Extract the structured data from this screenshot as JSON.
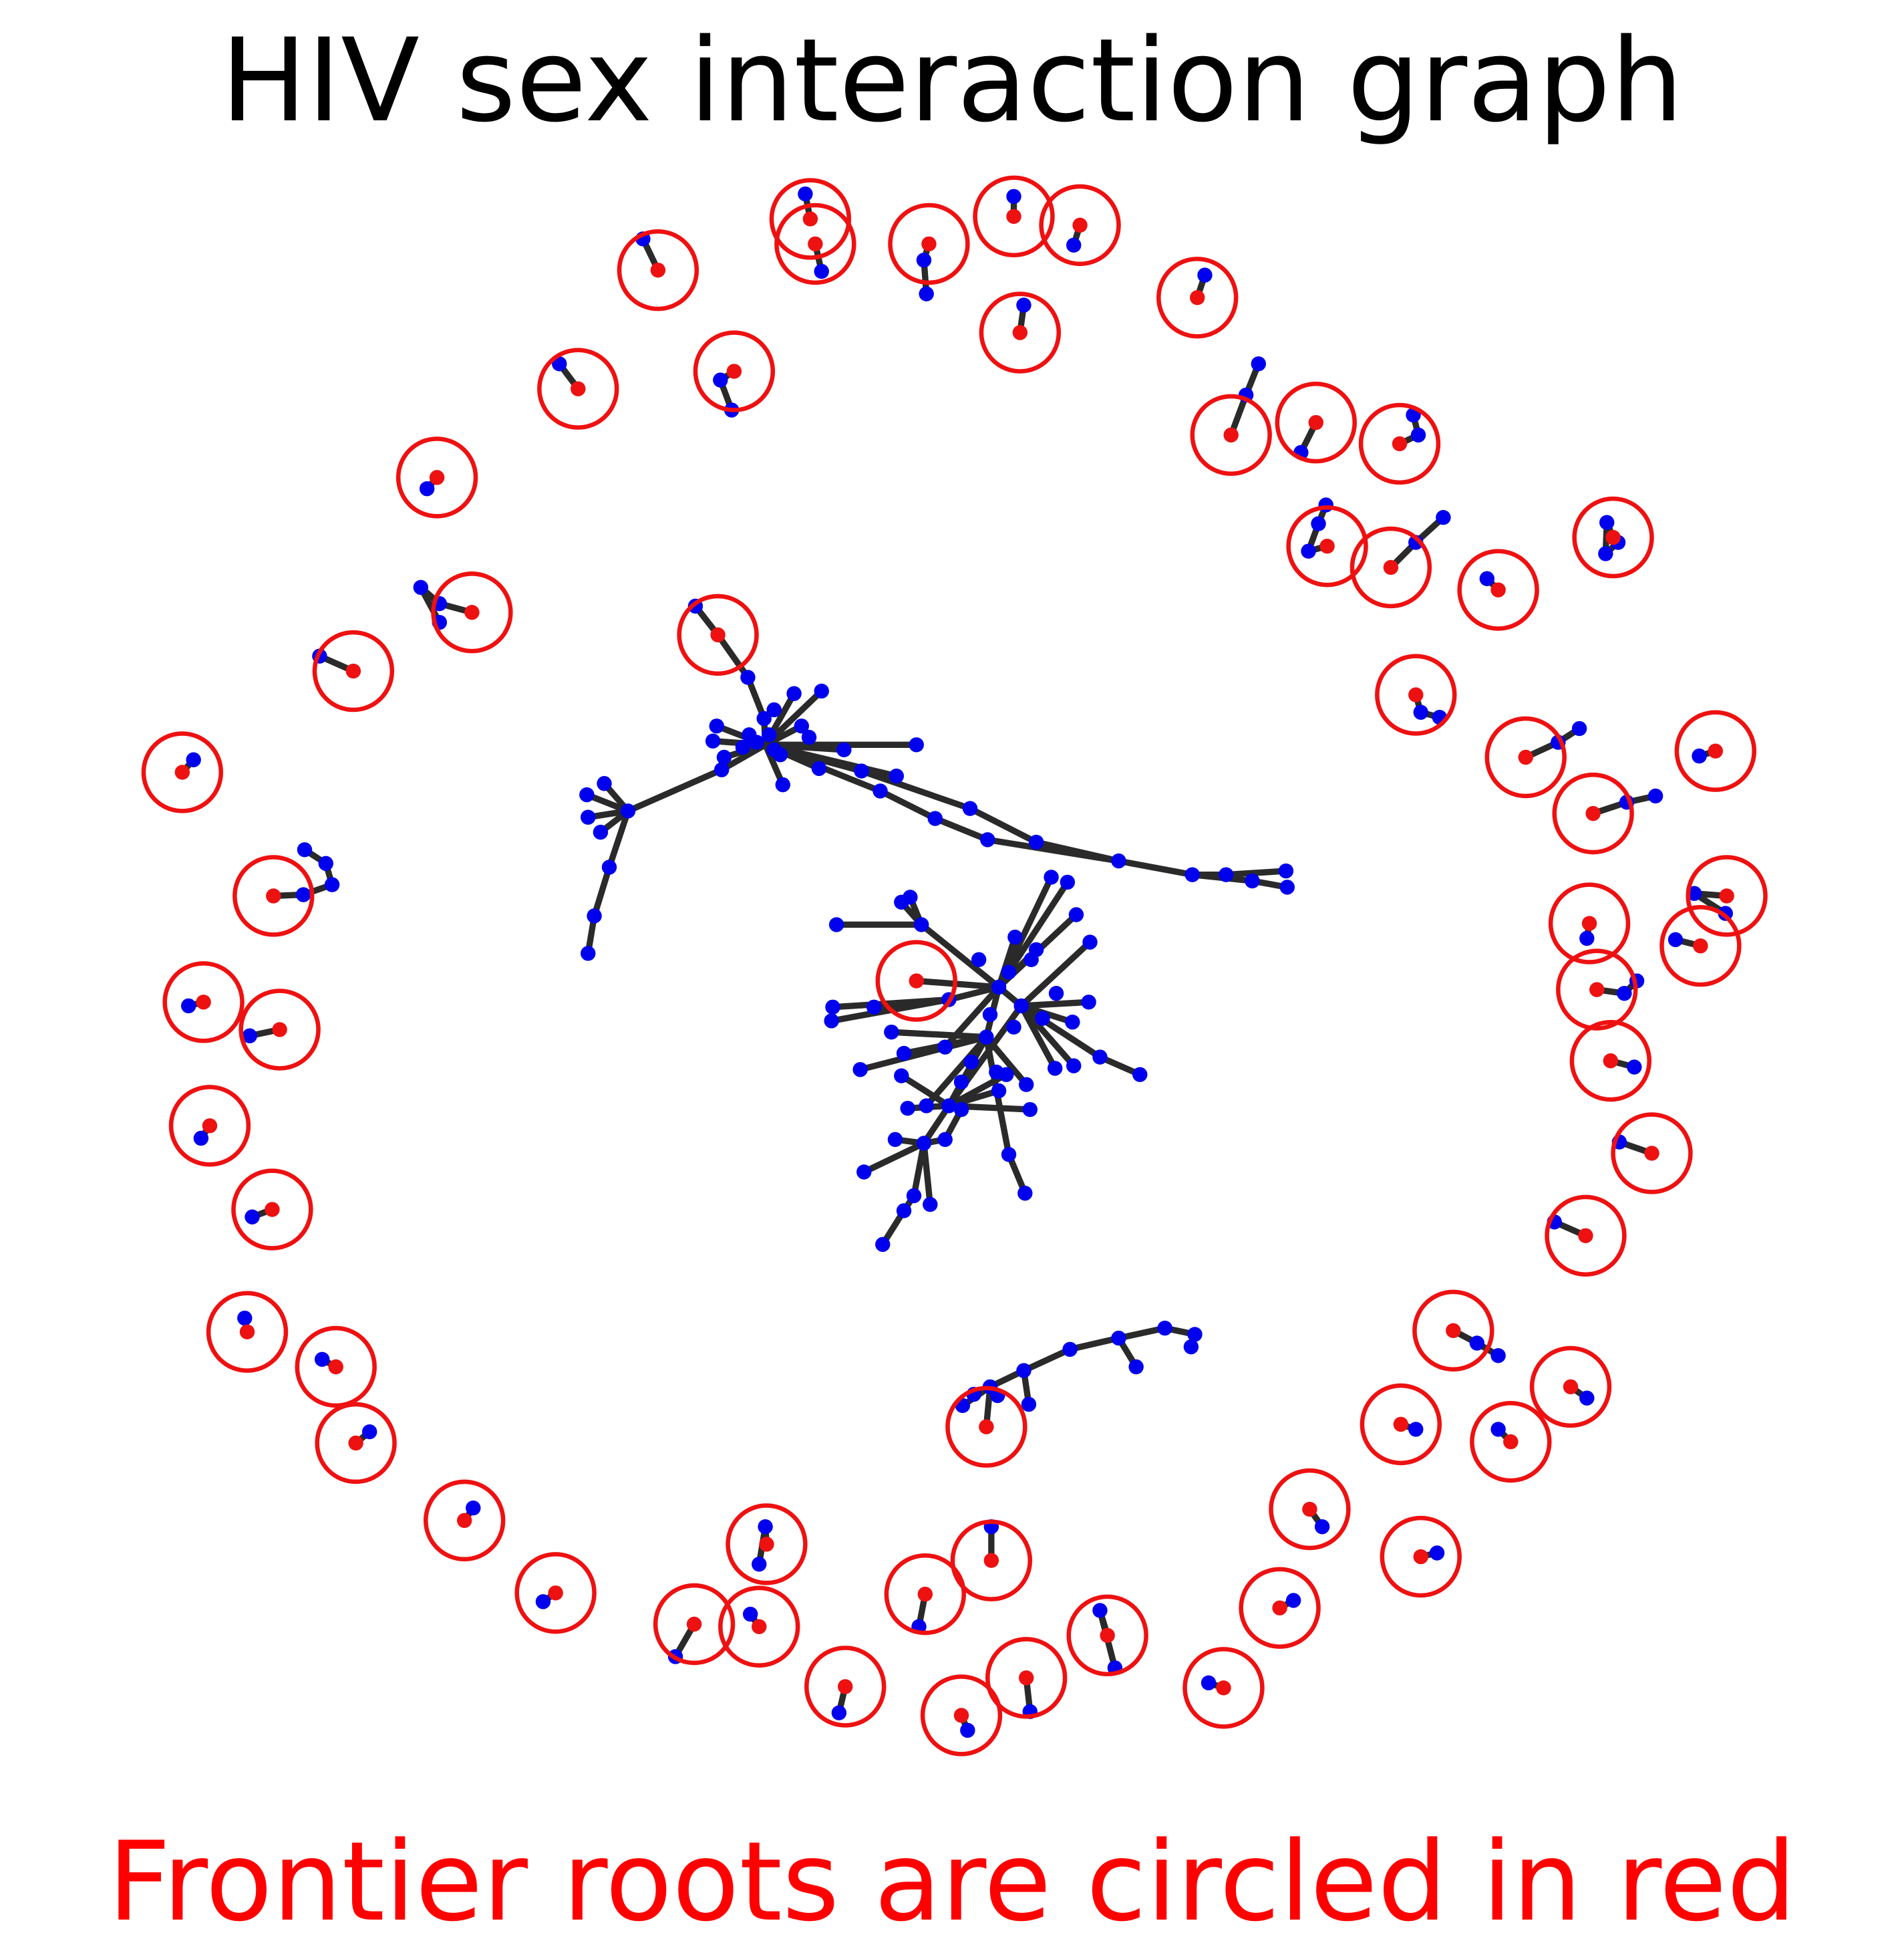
{
  "title": "HIV sex interaction graph",
  "caption": "Frontier roots are circled in red",
  "colors": {
    "node": "#0000ee",
    "root": "#ee1111",
    "edge": "#2a2a2a",
    "circle": "#ee1111",
    "caption": "#ff0000"
  },
  "legend": {
    "node_icon": "blue-dot",
    "root_icon": "red-dot"
  }
}
